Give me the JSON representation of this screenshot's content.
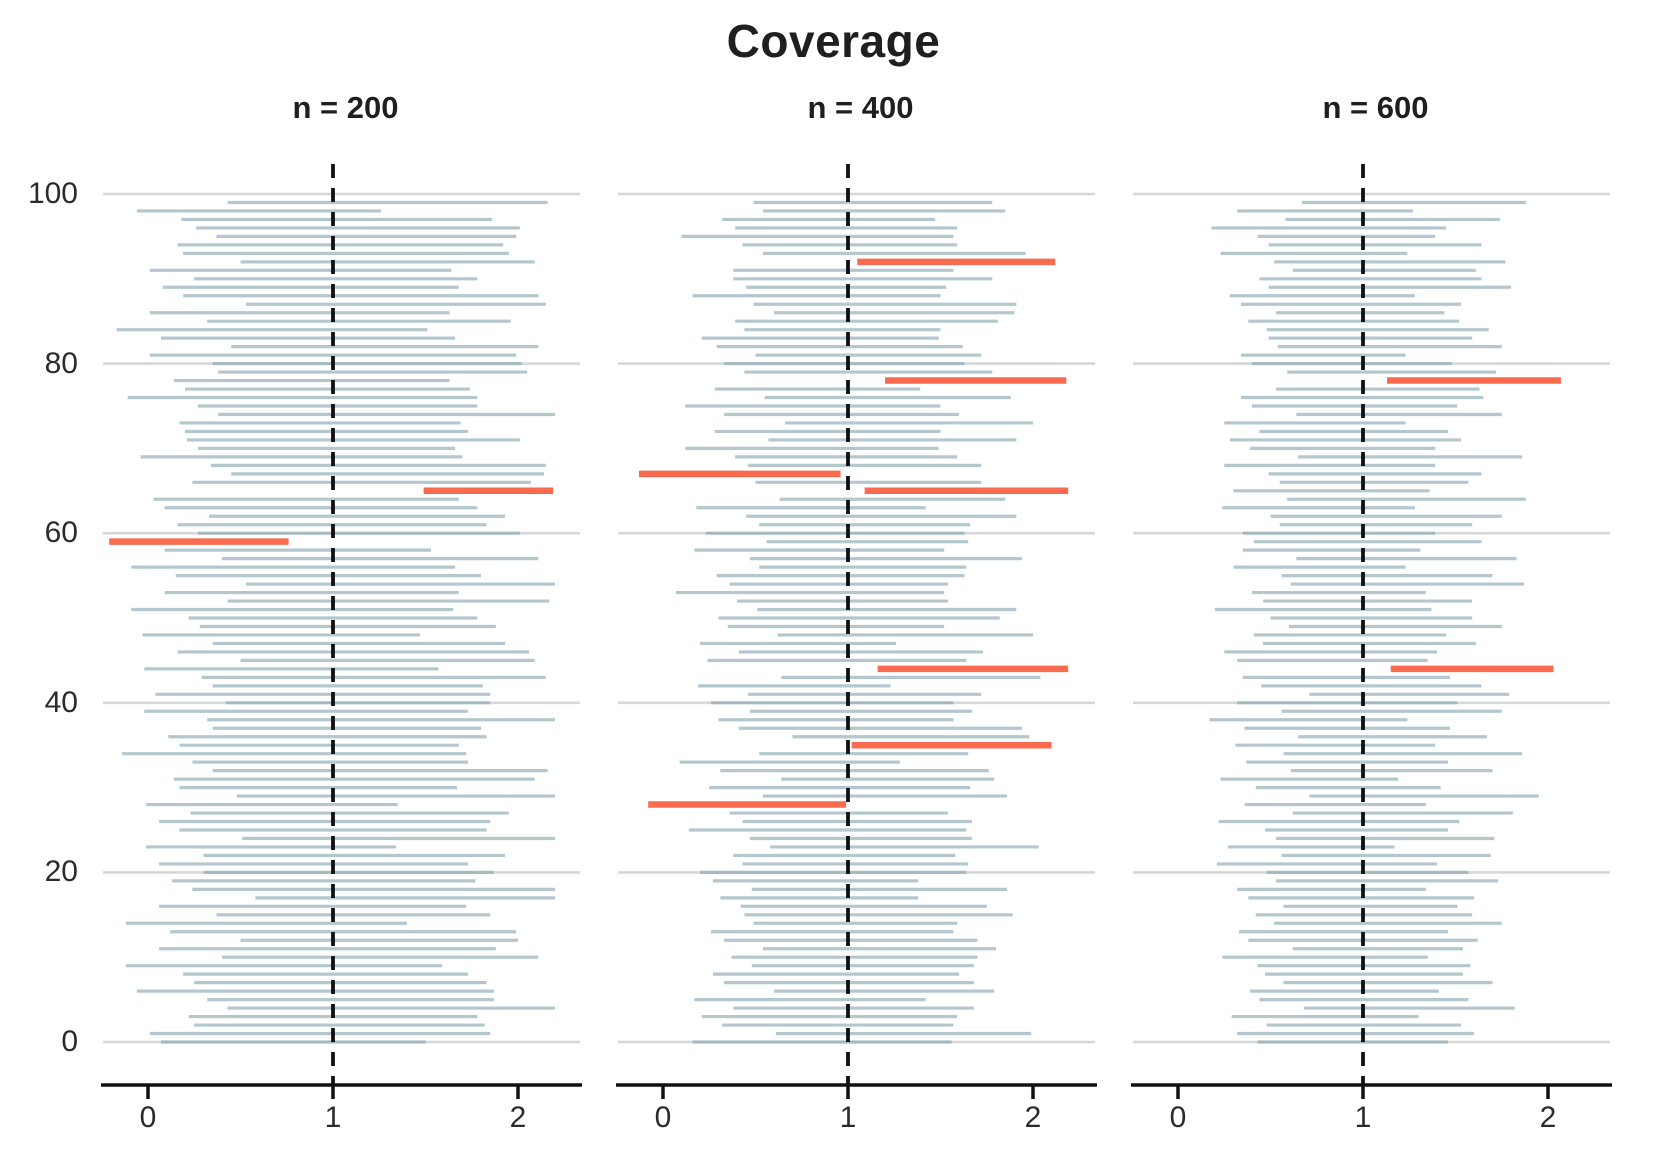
{
  "title": "Coverage",
  "chart_data": {
    "type": "bar",
    "subtype": "horizontal-confidence-intervals",
    "title": "Coverage",
    "xlabel": "",
    "ylabel": "",
    "grid": "horizontal-at-y-ticks",
    "legend": "none",
    "reference_line_x": 1,
    "colors": {
      "covered_interval": "#b6c8d0",
      "missed_interval": "#fa6a4f",
      "reference_line": "#111111",
      "axis": "#111111",
      "gridline": "#d7d7d7",
      "tick_label": "#2b2b2b"
    },
    "y_ticks": [
      0,
      20,
      40,
      60,
      80,
      100
    ],
    "panels": [
      {
        "label": "n = 200",
        "n": 200,
        "x_ticks": [
          0,
          1,
          2
        ],
        "xlim": [
          -0.25,
          2.3
        ],
        "ylim": [
          -4,
          104
        ],
        "show_y_labels": true,
        "miss_rows": [
          59,
          65
        ],
        "intervals": [
          [
            0.07,
            1.5
          ],
          [
            0.01,
            1.85
          ],
          [
            0.25,
            1.82
          ],
          [
            0.22,
            1.78
          ],
          [
            0.43,
            2.2
          ],
          [
            0.32,
            1.87
          ],
          [
            -0.06,
            1.87
          ],
          [
            0.25,
            1.83
          ],
          [
            0.19,
            1.73
          ],
          [
            -0.12,
            1.59
          ],
          [
            0.4,
            2.11
          ],
          [
            0.06,
            1.88
          ],
          [
            0.5,
            2.0
          ],
          [
            0.12,
            1.99
          ],
          [
            -0.12,
            1.4
          ],
          [
            0.37,
            1.85
          ],
          [
            0.06,
            1.72
          ],
          [
            0.58,
            2.2
          ],
          [
            0.24,
            2.2
          ],
          [
            0.13,
            1.77
          ],
          [
            0.3,
            1.87
          ],
          [
            0.06,
            1.73
          ],
          [
            0.3,
            1.93
          ],
          [
            -0.01,
            1.34
          ],
          [
            0.51,
            2.2
          ],
          [
            0.17,
            1.83
          ],
          [
            0.06,
            1.85
          ],
          [
            0.23,
            1.95
          ],
          [
            -0.01,
            1.35
          ],
          [
            0.48,
            2.2
          ],
          [
            0.17,
            1.67
          ],
          [
            0.14,
            2.09
          ],
          [
            0.35,
            2.16
          ],
          [
            0.24,
            1.73
          ],
          [
            -0.14,
            1.72
          ],
          [
            0.17,
            1.68
          ],
          [
            0.11,
            1.83
          ],
          [
            0.35,
            1.8
          ],
          [
            0.32,
            2.2
          ],
          [
            -0.02,
            1.73
          ],
          [
            0.42,
            1.85
          ],
          [
            0.04,
            1.85
          ],
          [
            0.35,
            1.81
          ],
          [
            0.29,
            2.15
          ],
          [
            -0.02,
            1.57
          ],
          [
            0.5,
            2.09
          ],
          [
            0.16,
            2.06
          ],
          [
            0.35,
            1.93
          ],
          [
            -0.03,
            1.47
          ],
          [
            0.28,
            1.88
          ],
          [
            0.22,
            1.78
          ],
          [
            -0.09,
            1.65
          ],
          [
            0.43,
            2.17
          ],
          [
            0.09,
            1.68
          ],
          [
            0.53,
            2.2
          ],
          [
            0.15,
            1.8
          ],
          [
            -0.09,
            1.66
          ],
          [
            0.4,
            2.11
          ],
          [
            0.09,
            1.53
          ],
          [
            -0.21,
            0.76,
            1
          ],
          [
            0.27,
            2.01
          ],
          [
            0.16,
            1.83
          ],
          [
            0.33,
            1.93
          ],
          [
            0.09,
            1.78
          ],
          [
            0.03,
            1.68
          ],
          [
            1.49,
            2.19,
            1
          ],
          [
            0.24,
            2.07
          ],
          [
            0.45,
            2.14
          ],
          [
            0.34,
            2.15
          ],
          [
            -0.04,
            1.7
          ],
          [
            0.27,
            1.66
          ],
          [
            0.21,
            2.01
          ],
          [
            0.2,
            1.73
          ],
          [
            0.17,
            1.69
          ],
          [
            0.38,
            2.2
          ],
          [
            0.27,
            1.78
          ],
          [
            -0.11,
            1.78
          ],
          [
            0.2,
            1.74
          ],
          [
            0.14,
            1.63
          ],
          [
            0.38,
            2.05
          ],
          [
            0.35,
            2.02
          ],
          [
            0.01,
            1.99
          ],
          [
            0.45,
            2.11
          ],
          [
            0.07,
            1.66
          ],
          [
            -0.17,
            1.51
          ],
          [
            0.32,
            1.96
          ],
          [
            0.01,
            1.63
          ],
          [
            0.53,
            2.15
          ],
          [
            0.19,
            2.11
          ],
          [
            0.08,
            1.68
          ],
          [
            0.25,
            1.78
          ],
          [
            0.01,
            1.64
          ],
          [
            0.5,
            2.09
          ],
          [
            0.19,
            1.95
          ],
          [
            0.16,
            1.92
          ],
          [
            0.37,
            1.99
          ],
          [
            0.26,
            2.01
          ],
          [
            0.18,
            1.86
          ],
          [
            -0.06,
            1.26
          ],
          [
            0.43,
            2.16
          ]
        ]
      },
      {
        "label": "n = 400",
        "n": 400,
        "x_ticks": [
          0,
          1,
          2
        ],
        "xlim": [
          -0.25,
          2.3
        ],
        "ylim": [
          -4,
          104
        ],
        "show_y_labels": false,
        "miss_rows": [
          28,
          35,
          44,
          65,
          67,
          78,
          92
        ],
        "intervals": [
          [
            0.16,
            1.56
          ],
          [
            0.61,
            1.99
          ],
          [
            0.32,
            1.57
          ],
          [
            0.21,
            1.59
          ],
          [
            0.38,
            1.68
          ],
          [
            0.17,
            1.42
          ],
          [
            0.6,
            1.79
          ],
          [
            0.33,
            1.68
          ],
          [
            0.27,
            1.6
          ],
          [
            0.48,
            1.68
          ],
          [
            0.37,
            1.7
          ],
          [
            0.54,
            1.8
          ],
          [
            0.33,
            1.7
          ],
          [
            0.26,
            1.57
          ],
          [
            0.49,
            1.59
          ],
          [
            0.44,
            1.89
          ],
          [
            0.42,
            1.75
          ],
          [
            0.31,
            1.38
          ],
          [
            0.48,
            1.86
          ],
          [
            0.27,
            1.38
          ],
          [
            0.2,
            1.64
          ],
          [
            0.43,
            1.65
          ],
          [
            0.38,
            1.58
          ],
          [
            0.58,
            2.03
          ],
          [
            0.47,
            1.67
          ],
          [
            0.14,
            1.64
          ],
          [
            0.43,
            1.67
          ],
          [
            0.36,
            1.54
          ],
          [
            -0.08,
            0.99,
            1
          ],
          [
            0.54,
            1.86
          ],
          [
            0.25,
            1.66
          ],
          [
            0.64,
            1.79
          ],
          [
            0.31,
            1.76
          ],
          [
            0.09,
            1.28
          ],
          [
            0.52,
            1.65
          ],
          [
            1.02,
            2.1,
            1
          ],
          [
            0.7,
            1.98
          ],
          [
            0.41,
            1.94
          ],
          [
            0.3,
            1.57
          ],
          [
            0.47,
            1.67
          ],
          [
            0.26,
            1.57
          ],
          [
            0.46,
            1.72
          ],
          [
            0.19,
            1.23
          ],
          [
            0.64,
            2.04
          ],
          [
            1.16,
            2.19,
            1
          ],
          [
            0.24,
            1.64
          ],
          [
            0.41,
            1.73
          ],
          [
            0.2,
            1.26
          ],
          [
            0.62,
            2.0
          ],
          [
            0.35,
            1.52
          ],
          [
            0.3,
            1.82
          ],
          [
            0.51,
            1.91
          ],
          [
            0.4,
            1.54
          ],
          [
            0.07,
            1.52
          ],
          [
            0.36,
            1.54
          ],
          [
            0.29,
            1.63
          ],
          [
            0.52,
            1.64
          ],
          [
            0.47,
            1.94
          ],
          [
            0.17,
            1.52
          ],
          [
            0.56,
            1.65
          ],
          [
            0.23,
            1.63
          ],
          [
            0.52,
            1.66
          ],
          [
            0.45,
            1.91
          ],
          [
            0.18,
            1.42
          ],
          [
            0.63,
            1.85
          ],
          [
            1.09,
            2.19,
            1
          ],
          [
            0.5,
            1.72
          ],
          [
            -0.13,
            0.96,
            1
          ],
          [
            0.46,
            1.72
          ],
          [
            0.39,
            1.59
          ],
          [
            0.12,
            1.49
          ],
          [
            0.57,
            1.91
          ],
          [
            0.28,
            1.5
          ],
          [
            0.66,
            2.0
          ],
          [
            0.33,
            1.6
          ],
          [
            0.12,
            1.5
          ],
          [
            0.55,
            1.88
          ],
          [
            0.28,
            1.39
          ],
          [
            1.2,
            2.18,
            1
          ],
          [
            0.44,
            1.78
          ],
          [
            0.33,
            1.63
          ],
          [
            0.5,
            1.72
          ],
          [
            0.29,
            1.62
          ],
          [
            0.21,
            1.49
          ],
          [
            0.44,
            1.5
          ],
          [
            0.39,
            1.81
          ],
          [
            0.6,
            1.9
          ],
          [
            0.49,
            1.91
          ],
          [
            0.16,
            1.5
          ],
          [
            0.45,
            1.53
          ],
          [
            0.38,
            1.78
          ],
          [
            0.38,
            1.57
          ],
          [
            1.05,
            2.12,
            1
          ],
          [
            0.54,
            1.96
          ],
          [
            0.43,
            1.59
          ],
          [
            0.1,
            1.57
          ],
          [
            0.39,
            1.59
          ],
          [
            0.32,
            1.47
          ],
          [
            0.54,
            1.85
          ],
          [
            0.49,
            1.78
          ]
        ]
      },
      {
        "label": "n = 600",
        "n": 600,
        "x_ticks": [
          0,
          1,
          2
        ],
        "xlim": [
          -0.25,
          2.3
        ],
        "ylim": [
          -4,
          104
        ],
        "show_y_labels": false,
        "miss_rows": [
          44,
          78
        ],
        "intervals": [
          [
            0.43,
            1.46
          ],
          [
            0.32,
            1.6
          ],
          [
            0.48,
            1.53
          ],
          [
            0.29,
            1.3
          ],
          [
            0.68,
            1.82
          ],
          [
            0.44,
            1.57
          ],
          [
            0.39,
            1.41
          ],
          [
            0.57,
            1.7
          ],
          [
            0.47,
            1.54
          ],
          [
            0.43,
            1.58
          ],
          [
            0.24,
            1.35
          ],
          [
            0.62,
            1.54
          ],
          [
            0.38,
            1.62
          ],
          [
            0.33,
            1.46
          ],
          [
            0.52,
            1.75
          ],
          [
            0.42,
            1.59
          ],
          [
            0.57,
            1.51
          ],
          [
            0.38,
            1.6
          ],
          [
            0.32,
            1.34
          ],
          [
            0.53,
            1.73
          ],
          [
            0.48,
            1.57
          ],
          [
            0.21,
            1.4
          ],
          [
            0.56,
            1.69
          ],
          [
            0.27,
            1.17
          ],
          [
            0.53,
            1.71
          ],
          [
            0.47,
            1.46
          ],
          [
            0.22,
            1.52
          ],
          [
            0.62,
            1.81
          ],
          [
            0.36,
            1.34
          ],
          [
            0.71,
            1.95
          ],
          [
            0.42,
            1.42
          ],
          [
            0.23,
            1.19
          ],
          [
            0.61,
            1.7
          ],
          [
            0.37,
            1.46
          ],
          [
            0.57,
            1.86
          ],
          [
            0.31,
            1.39
          ],
          [
            0.65,
            1.67
          ],
          [
            0.36,
            1.47
          ],
          [
            0.17,
            1.24
          ],
          [
            0.56,
            1.75
          ],
          [
            0.32,
            1.51
          ],
          [
            0.71,
            1.79
          ],
          [
            0.45,
            1.64
          ],
          [
            0.35,
            1.47
          ],
          [
            1.15,
            2.03,
            1
          ],
          [
            0.32,
            1.35
          ],
          [
            0.25,
            1.4
          ],
          [
            0.46,
            1.61
          ],
          [
            0.41,
            1.45
          ],
          [
            0.6,
            1.75
          ],
          [
            0.5,
            1.59
          ],
          [
            0.2,
            1.37
          ],
          [
            0.46,
            1.59
          ],
          [
            0.4,
            1.34
          ],
          [
            0.61,
            1.87
          ],
          [
            0.56,
            1.7
          ],
          [
            0.3,
            1.23
          ],
          [
            0.64,
            1.83
          ],
          [
            0.35,
            1.31
          ],
          [
            0.41,
            1.64
          ],
          [
            0.35,
            1.39
          ],
          [
            0.55,
            1.59
          ],
          [
            0.5,
            1.75
          ],
          [
            0.24,
            1.28
          ],
          [
            0.59,
            1.88
          ],
          [
            0.3,
            1.36
          ],
          [
            0.55,
            1.57
          ],
          [
            0.49,
            1.64
          ],
          [
            0.25,
            1.39
          ],
          [
            0.65,
            1.86
          ],
          [
            0.39,
            1.39
          ],
          [
            0.28,
            1.53
          ],
          [
            0.44,
            1.46
          ],
          [
            0.25,
            1.23
          ],
          [
            0.64,
            1.75
          ],
          [
            0.4,
            1.51
          ],
          [
            0.34,
            1.65
          ],
          [
            0.53,
            1.63
          ],
          [
            1.13,
            2.07,
            1
          ],
          [
            0.59,
            1.72
          ],
          [
            0.4,
            1.48
          ],
          [
            0.34,
            1.23
          ],
          [
            0.54,
            1.75
          ],
          [
            0.49,
            1.59
          ],
          [
            0.48,
            1.68
          ],
          [
            0.38,
            1.52
          ],
          [
            0.53,
            1.44
          ],
          [
            0.34,
            1.53
          ],
          [
            0.28,
            1.28
          ],
          [
            0.49,
            1.8
          ],
          [
            0.44,
            1.64
          ],
          [
            0.62,
            1.61
          ],
          [
            0.52,
            1.77
          ],
          [
            0.23,
            1.24
          ],
          [
            0.49,
            1.64
          ],
          [
            0.43,
            1.39
          ],
          [
            0.18,
            1.45
          ],
          [
            0.58,
            1.74
          ],
          [
            0.32,
            1.27
          ],
          [
            0.67,
            1.88
          ]
        ]
      }
    ]
  }
}
